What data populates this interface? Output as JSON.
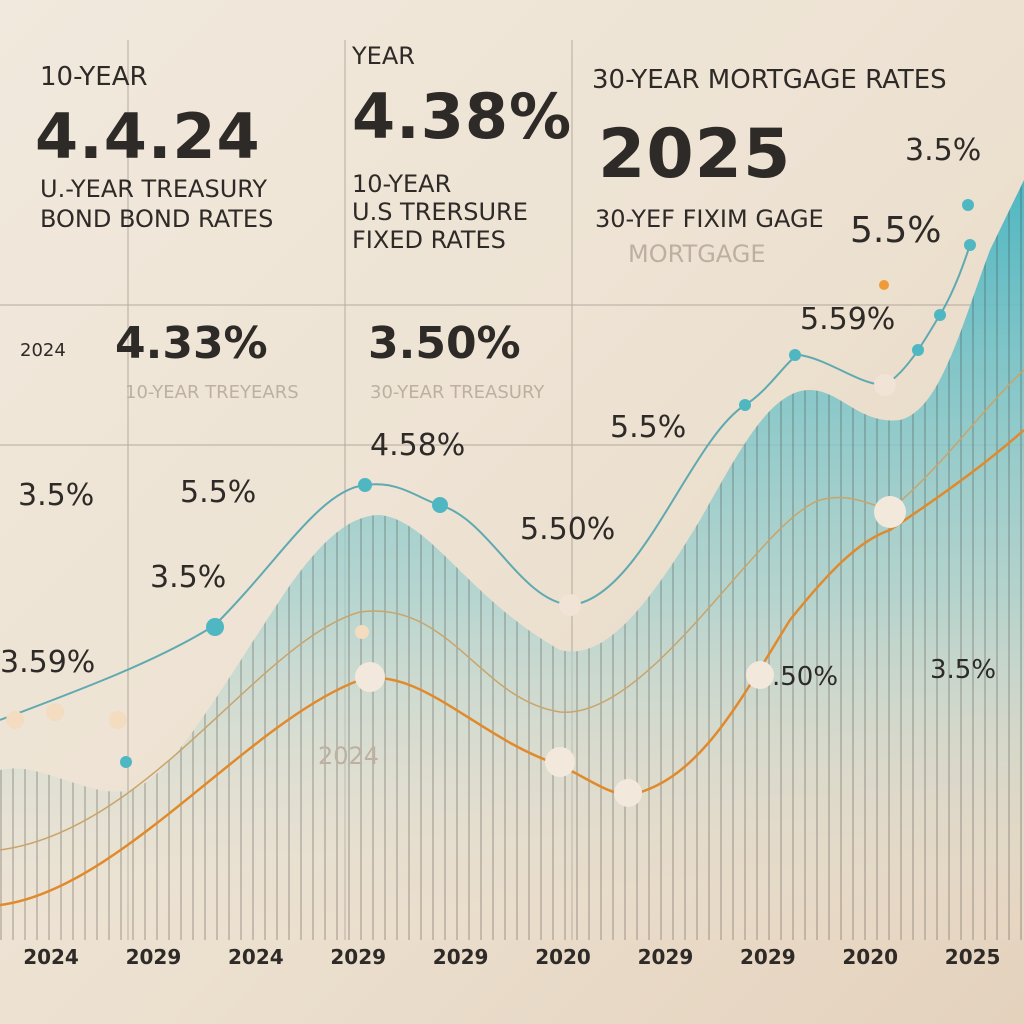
{
  "panels": [
    {
      "kicker": "10-YEAR",
      "value": "4.4.24",
      "caption": [
        "U.-YEAR TREASURY",
        "BOND  BOND RATES"
      ]
    },
    {
      "kicker": "YEAR",
      "value": "4.38%",
      "caption": [
        "10-YEAR",
        "U.S TRERSURE",
        "FIXED  RATES"
      ]
    },
    {
      "kicker": "30-YEAR MORTGAGE RATES",
      "value": "2025",
      "caption": [
        "30-YEF FIXIM GAGE",
        "MORTGAGE"
      ]
    }
  ],
  "second_row": [
    {
      "year": "2024",
      "value": "4.33%",
      "caption": "10-YEAR TREYEARS"
    },
    {
      "value": "3.50%",
      "caption": "30-YEAR TREASURY"
    }
  ],
  "callouts": [
    "3.5%",
    "5.5%",
    "5.59%",
    "5.5%",
    "4.58%",
    "5.50%",
    "3.5%",
    "5.5%",
    "3.5%",
    "3.59%",
    ".50%",
    "3.5%",
    "2024"
  ],
  "x_axis": [
    "2024",
    "2029",
    "2024",
    "2029",
    "2029",
    "2020",
    "2029",
    "2029",
    "2020",
    "2025"
  ]
}
